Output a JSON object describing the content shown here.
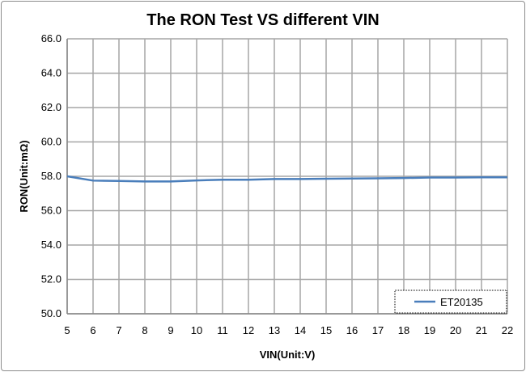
{
  "chart_data": {
    "type": "line",
    "title": "The RON Test VS different VIN",
    "xlabel": "VIN(Unit:V)",
    "ylabel": "RON(Unit:mΩ)",
    "x": [
      5,
      6,
      7,
      8,
      9,
      10,
      11,
      12,
      13,
      14,
      15,
      16,
      17,
      18,
      19,
      20,
      21,
      22
    ],
    "xlim": [
      5,
      22
    ],
    "ylim": [
      50,
      66
    ],
    "yticks": [
      "50.0",
      "52.0",
      "54.0",
      "56.0",
      "58.0",
      "60.0",
      "62.0",
      "64.0",
      "66.0"
    ],
    "xticks": [
      "5",
      "6",
      "7",
      "8",
      "9",
      "10",
      "11",
      "12",
      "13",
      "14",
      "15",
      "16",
      "17",
      "18",
      "19",
      "20",
      "21",
      "22"
    ],
    "grid": true,
    "legend_position": "bottom-right",
    "series": [
      {
        "name": "ET20135",
        "color": "#4a7ebb",
        "values": [
          58.0,
          57.75,
          57.73,
          57.7,
          57.7,
          57.76,
          57.8,
          57.8,
          57.84,
          57.84,
          57.86,
          57.87,
          57.88,
          57.9,
          57.93,
          57.93,
          57.94,
          57.94
        ]
      }
    ]
  }
}
